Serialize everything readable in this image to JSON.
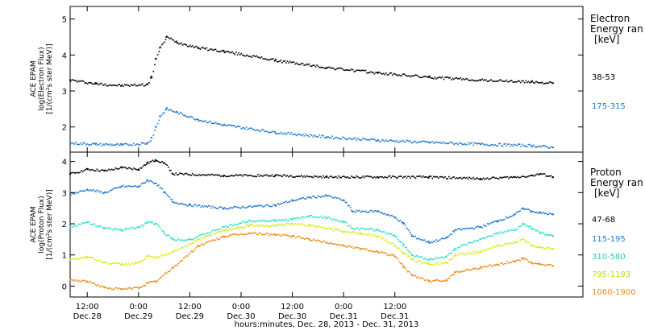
{
  "chart_data": [
    {
      "type": "scatter",
      "panel": "electron",
      "ylabel": [
        "ACE EPAM",
        "log(Electron Flux)",
        "[1/(cm²s ster MeV)]"
      ],
      "ylim": [
        1.3,
        5.35
      ],
      "yticks": [
        2,
        3,
        4,
        5
      ],
      "legend_title": [
        "Electron",
        "Energy ran"
      ],
      "legend_unit": "[keV]",
      "series": [
        {
          "name": "38-53",
          "color": "#000000",
          "points": [
            [
              0,
              3.3
            ],
            [
              6,
              3.2
            ],
            [
              12,
              3.15
            ],
            [
              18,
              3.18
            ],
            [
              19,
              3.4
            ],
            [
              20,
              3.9
            ],
            [
              21,
              4.2
            ],
            [
              22.5,
              4.5
            ],
            [
              25,
              4.35
            ],
            [
              30,
              4.2
            ],
            [
              36,
              4.1
            ],
            [
              48,
              3.85
            ],
            [
              60,
              3.65
            ],
            [
              72,
              3.5
            ],
            [
              84,
              3.38
            ],
            [
              96,
              3.3
            ],
            [
              108,
              3.25
            ],
            [
              113,
              3.22
            ]
          ]
        },
        {
          "name": "175-315",
          "color": "#1e78d2",
          "points": [
            [
              0,
              1.55
            ],
            [
              6,
              1.52
            ],
            [
              12,
              1.5
            ],
            [
              18,
              1.55
            ],
            [
              19,
              1.7
            ],
            [
              20,
              2.0
            ],
            [
              21,
              2.3
            ],
            [
              22.5,
              2.5
            ],
            [
              25,
              2.4
            ],
            [
              30,
              2.2
            ],
            [
              36,
              2.05
            ],
            [
              48,
              1.85
            ],
            [
              60,
              1.72
            ],
            [
              72,
              1.63
            ],
            [
              84,
              1.57
            ],
            [
              96,
              1.52
            ],
            [
              108,
              1.48
            ],
            [
              113,
              1.43
            ]
          ]
        }
      ]
    },
    {
      "type": "scatter",
      "panel": "proton",
      "ylabel": [
        "ACE EPAM",
        "log(Proton Flux)",
        "[1/(cm²s ster MeV)]"
      ],
      "ylim": [
        -0.35,
        4.3
      ],
      "yticks": [
        0,
        1,
        2,
        3,
        4
      ],
      "legend_title": [
        "Proton",
        "Energy ran"
      ],
      "legend_unit": "[keV]",
      "series": [
        {
          "name": "47-68",
          "color": "#000000",
          "points": [
            [
              0,
              3.6
            ],
            [
              4,
              3.75
            ],
            [
              8,
              3.7
            ],
            [
              12,
              3.8
            ],
            [
              16,
              3.75
            ],
            [
              18,
              3.95
            ],
            [
              20,
              4.05
            ],
            [
              22,
              3.95
            ],
            [
              24,
              3.6
            ],
            [
              36,
              3.55
            ],
            [
              48,
              3.55
            ],
            [
              60,
              3.5
            ],
            [
              72,
              3.5
            ],
            [
              84,
              3.5
            ],
            [
              96,
              3.45
            ],
            [
              104,
              3.5
            ],
            [
              108,
              3.55
            ],
            [
              110,
              3.6
            ],
            [
              113,
              3.5
            ]
          ]
        },
        {
          "name": "115-195",
          "color": "#1e78d2",
          "points": [
            [
              0,
              2.95
            ],
            [
              4,
              3.1
            ],
            [
              8,
              3.0
            ],
            [
              12,
              3.2
            ],
            [
              16,
              3.2
            ],
            [
              18,
              3.4
            ],
            [
              20,
              3.3
            ],
            [
              22,
              3.0
            ],
            [
              24,
              2.7
            ],
            [
              28,
              2.6
            ],
            [
              36,
              2.5
            ],
            [
              48,
              2.6
            ],
            [
              52,
              2.75
            ],
            [
              56,
              2.85
            ],
            [
              60,
              2.9
            ],
            [
              64,
              2.75
            ],
            [
              66,
              2.4
            ],
            [
              72,
              2.4
            ],
            [
              76,
              2.2
            ],
            [
              78,
              2.0
            ],
            [
              80,
              1.6
            ],
            [
              84,
              1.4
            ],
            [
              88,
              1.55
            ],
            [
              90,
              1.8
            ],
            [
              96,
              1.9
            ],
            [
              100,
              2.1
            ],
            [
              104,
              2.3
            ],
            [
              106,
              2.5
            ],
            [
              108,
              2.4
            ],
            [
              110,
              2.35
            ],
            [
              113,
              2.3
            ]
          ]
        },
        {
          "name": "310-580",
          "color": "#2ee0c8",
          "points": [
            [
              0,
              1.9
            ],
            [
              4,
              2.05
            ],
            [
              8,
              1.85
            ],
            [
              12,
              1.8
            ],
            [
              16,
              1.9
            ],
            [
              18,
              2.05
            ],
            [
              20,
              2.0
            ],
            [
              22,
              1.7
            ],
            [
              24,
              1.5
            ],
            [
              28,
              1.5
            ],
            [
              36,
              1.9
            ],
            [
              42,
              2.1
            ],
            [
              48,
              2.1
            ],
            [
              52,
              2.15
            ],
            [
              56,
              2.25
            ],
            [
              60,
              2.2
            ],
            [
              64,
              2.05
            ],
            [
              66,
              1.85
            ],
            [
              72,
              1.8
            ],
            [
              76,
              1.6
            ],
            [
              78,
              1.3
            ],
            [
              80,
              1.0
            ],
            [
              84,
              0.85
            ],
            [
              88,
              0.95
            ],
            [
              90,
              1.2
            ],
            [
              96,
              1.5
            ],
            [
              100,
              1.7
            ],
            [
              104,
              1.8
            ],
            [
              106,
              2.0
            ],
            [
              108,
              1.85
            ],
            [
              110,
              1.7
            ],
            [
              113,
              1.6
            ]
          ]
        },
        {
          "name": "795-1193",
          "color": "#d8ec10",
          "points": [
            [
              0,
              0.85
            ],
            [
              4,
              0.95
            ],
            [
              8,
              0.75
            ],
            [
              12,
              0.7
            ],
            [
              16,
              0.75
            ],
            [
              18,
              0.95
            ],
            [
              20,
              0.9
            ],
            [
              24,
              1.1
            ],
            [
              30,
              1.5
            ],
            [
              36,
              1.8
            ],
            [
              42,
              1.95
            ],
            [
              48,
              1.95
            ],
            [
              52,
              2.0
            ],
            [
              56,
              1.95
            ],
            [
              60,
              1.85
            ],
            [
              64,
              1.75
            ],
            [
              68,
              1.7
            ],
            [
              72,
              1.6
            ],
            [
              76,
              1.3
            ],
            [
              78,
              1.05
            ],
            [
              80,
              0.85
            ],
            [
              84,
              0.7
            ],
            [
              88,
              0.75
            ],
            [
              90,
              1.0
            ],
            [
              96,
              1.1
            ],
            [
              100,
              1.3
            ],
            [
              104,
              1.4
            ],
            [
              106,
              1.5
            ],
            [
              108,
              1.3
            ],
            [
              110,
              1.25
            ],
            [
              113,
              1.2
            ]
          ]
        },
        {
          "name": "1060-1900",
          "color": "#ee8a1c",
          "points": [
            [
              0,
              0.2
            ],
            [
              4,
              0.15
            ],
            [
              8,
              -0.05
            ],
            [
              12,
              -0.1
            ],
            [
              16,
              -0.05
            ],
            [
              18,
              0.1
            ],
            [
              20,
              0.15
            ],
            [
              24,
              0.6
            ],
            [
              30,
              1.3
            ],
            [
              36,
              1.6
            ],
            [
              42,
              1.7
            ],
            [
              48,
              1.65
            ],
            [
              52,
              1.6
            ],
            [
              56,
              1.5
            ],
            [
              60,
              1.4
            ],
            [
              64,
              1.3
            ],
            [
              68,
              1.2
            ],
            [
              72,
              1.1
            ],
            [
              76,
              0.95
            ],
            [
              78,
              0.6
            ],
            [
              80,
              0.35
            ],
            [
              84,
              0.15
            ],
            [
              88,
              0.2
            ],
            [
              90,
              0.45
            ],
            [
              96,
              0.6
            ],
            [
              100,
              0.7
            ],
            [
              104,
              0.8
            ],
            [
              106,
              0.9
            ],
            [
              108,
              0.75
            ],
            [
              110,
              0.7
            ],
            [
              113,
              0.65
            ]
          ]
        }
      ]
    }
  ],
  "x_axis": {
    "label": "hours:minutes, Dec. 28, 2013 - Dec. 31, 2013",
    "unit_note": "x values are hours after 08:00 on Dec. 28",
    "xlim": [
      0,
      120
    ],
    "ticks": [
      {
        "x": 4,
        "time": "12:00",
        "day": "Dec.28"
      },
      {
        "x": 16,
        "time": "0:00",
        "day": "Dec.29"
      },
      {
        "x": 28,
        "time": "12:00",
        "day": "Dec.29"
      },
      {
        "x": 40,
        "time": "0:00",
        "day": "Dec.30"
      },
      {
        "x": 52,
        "time": "12:00",
        "day": "Dec.30"
      },
      {
        "x": 64,
        "time": "0:00",
        "day": "Dec.31"
      },
      {
        "x": 76,
        "time": "12:00",
        "day": "Dec.31"
      }
    ]
  }
}
